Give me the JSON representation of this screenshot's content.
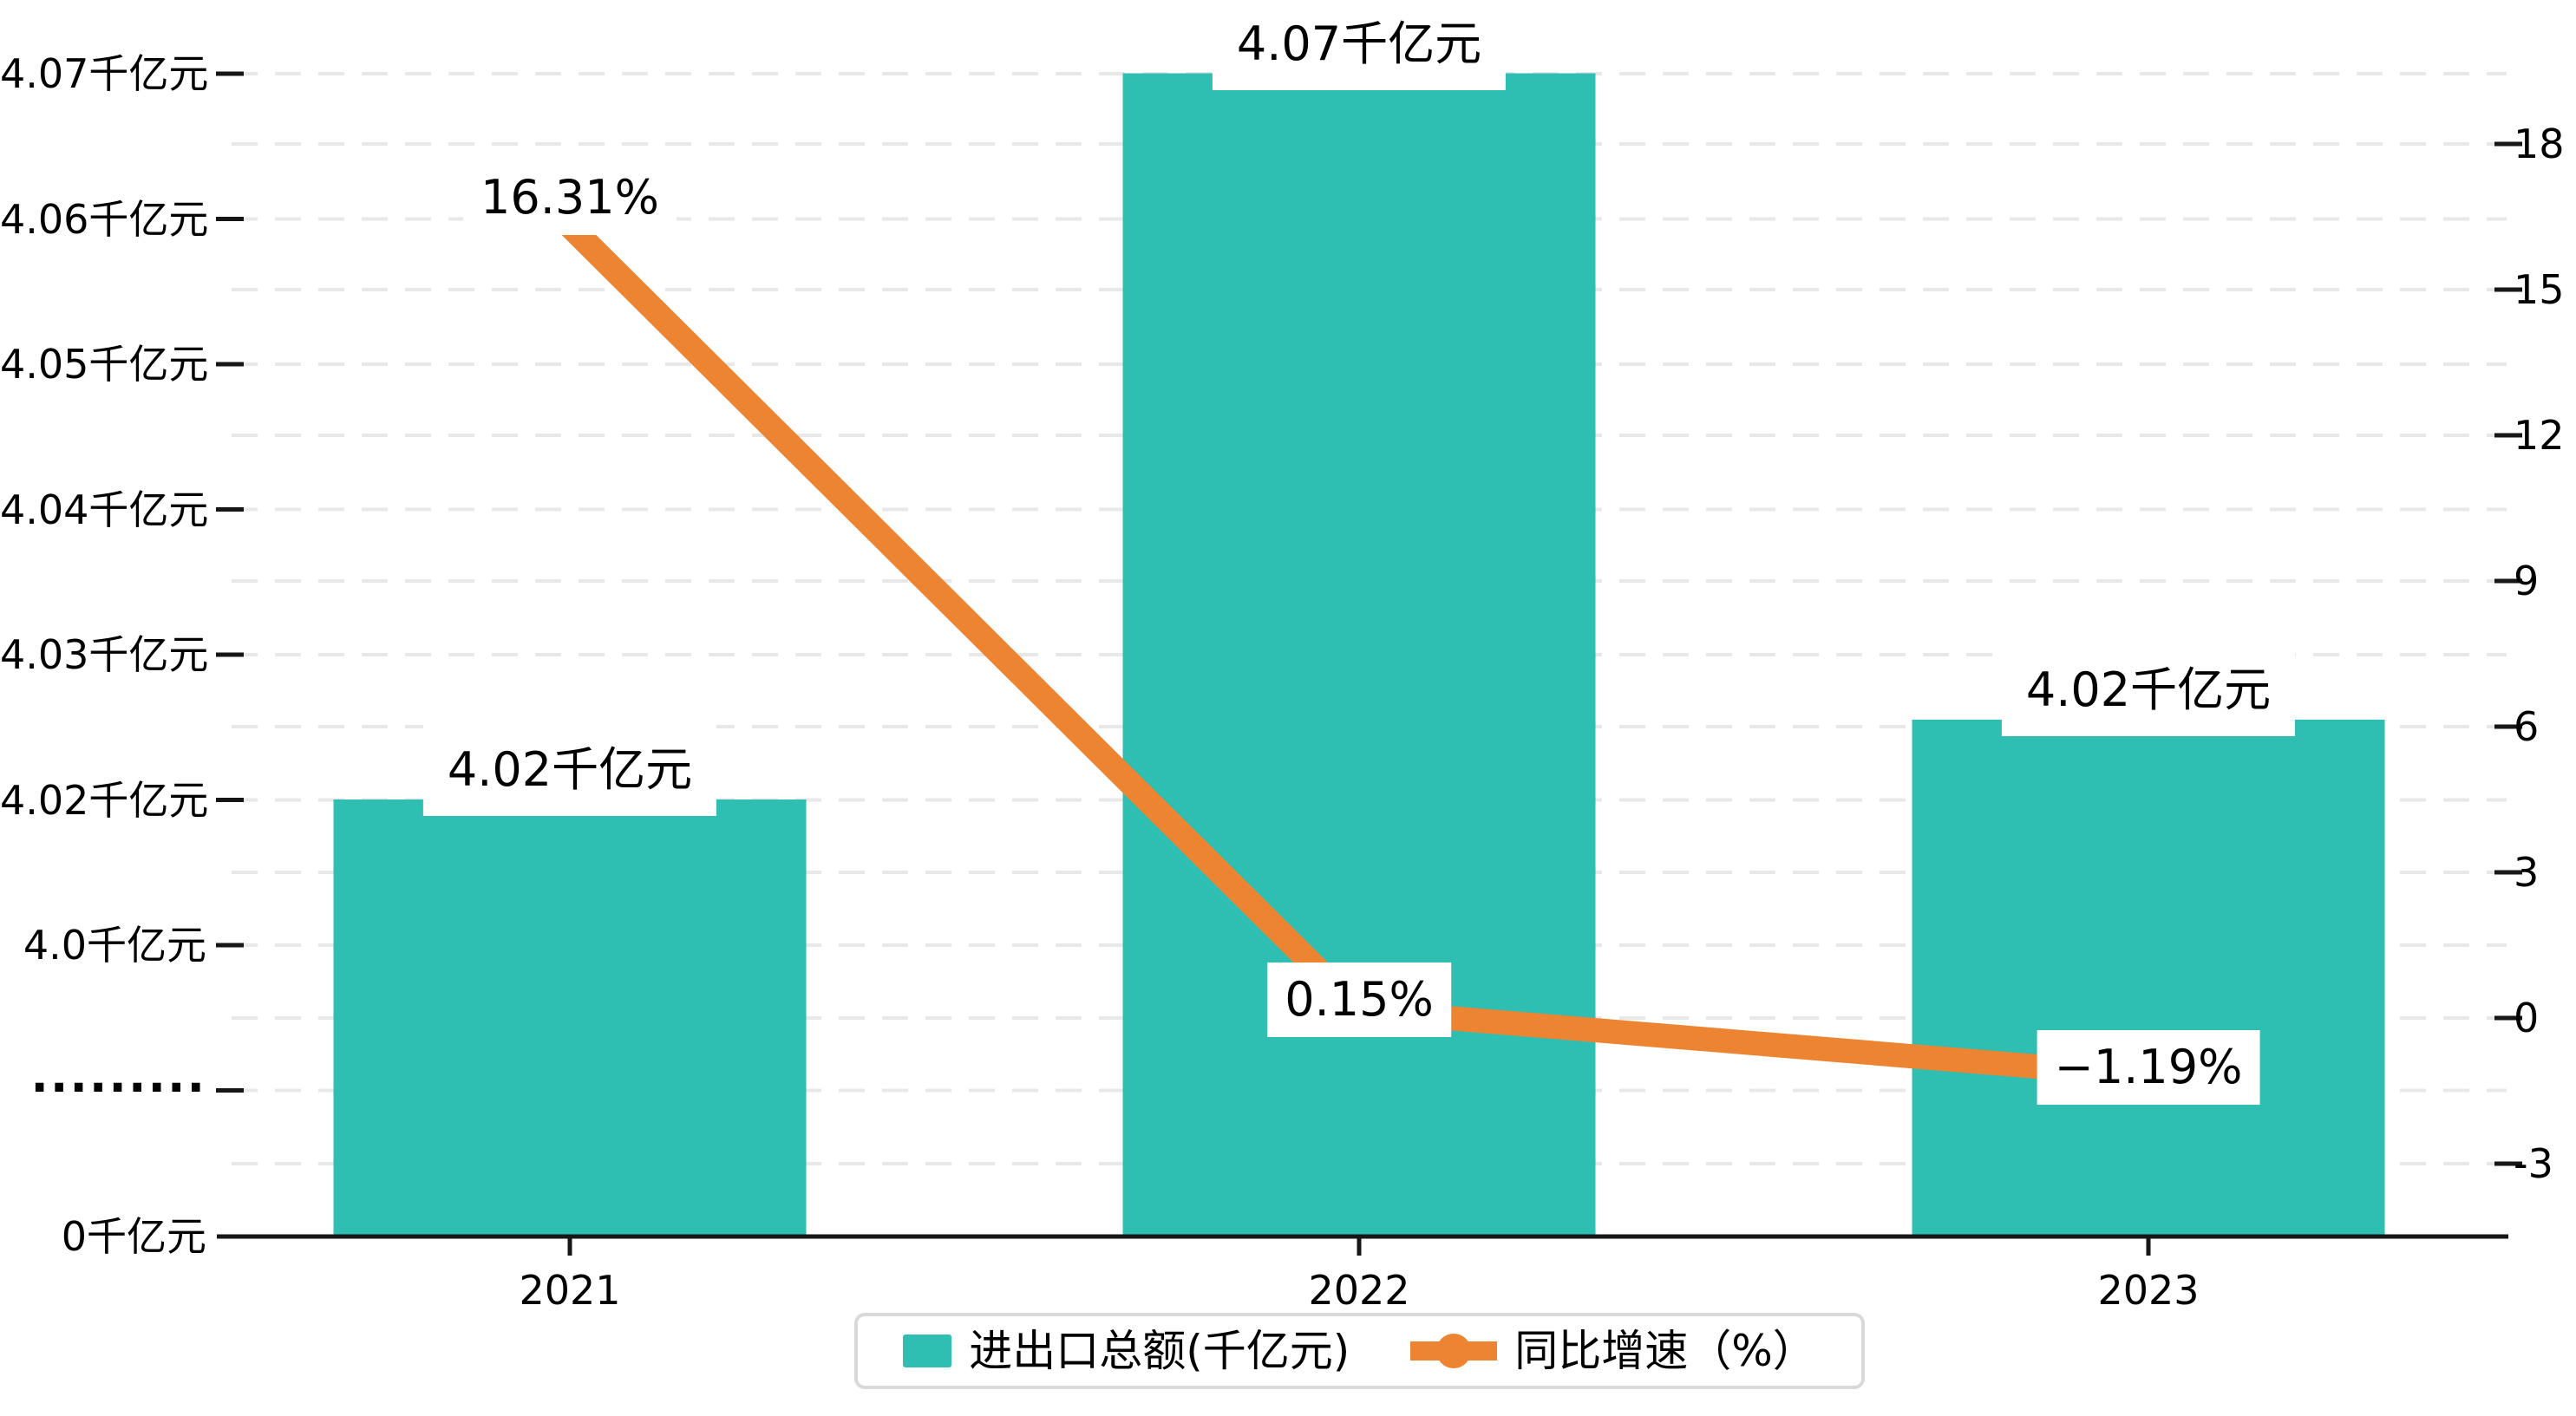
{
  "palette": {
    "bar_color": "#2FBEB2",
    "line_color": "#ED8432",
    "grid_color": "#e8e8e8",
    "axis_color": "#161616",
    "text_color": "#000000",
    "label_bg": "#ffffff"
  },
  "chart_data": {
    "type": "bar+line combo",
    "categories": [
      "2021",
      "2022",
      "2023"
    ],
    "series": [
      {
        "name": "进出口总额(千亿元)",
        "type": "bar",
        "axis": "left",
        "unit": "千亿元",
        "values": [
          4.02,
          4.07,
          4.0255
        ],
        "point_labels": [
          "4.02千亿元",
          "4.07千亿元",
          "4.02千亿元"
        ],
        "color": "#2FBEB2"
      },
      {
        "name": "同比增速（%）",
        "type": "line",
        "axis": "right",
        "unit": "%",
        "values": [
          16.31,
          0.15,
          -1.19
        ],
        "point_labels": [
          "16.31%",
          "0.15%",
          "−1.19%"
        ],
        "color": "#ED8432"
      }
    ],
    "left_axis": {
      "tick_labels": [
        "4.07千亿元",
        "4.06千亿元",
        "4.05千亿元",
        "4.04千亿元",
        "4.03千亿元",
        "4.02千亿元",
        "4.0千亿元"
      ],
      "break_symbol": "·········",
      "zero_label": "0千亿元",
      "broken_axis": true
    },
    "right_axis": {
      "tick_labels": [
        "18",
        "15",
        "12",
        "9",
        "6",
        "3",
        "0",
        "-3"
      ],
      "range": [
        -3,
        18
      ]
    },
    "legend": {
      "items": [
        {
          "label": "进出口总额(千亿元)",
          "marker": "bar-swatch"
        },
        {
          "label": "同比增速（%）",
          "marker": "line-with-dot"
        }
      ]
    },
    "grid": "dashed horizontal"
  }
}
